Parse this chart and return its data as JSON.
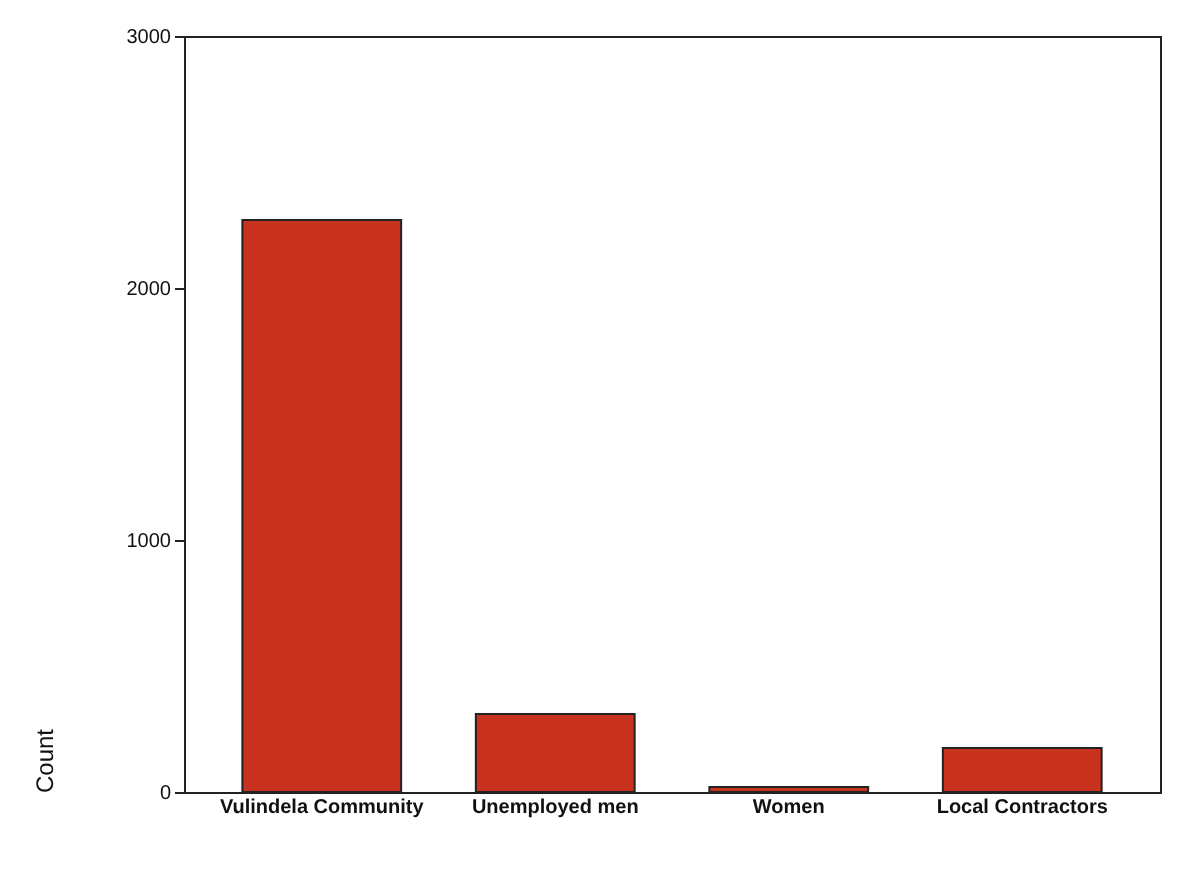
{
  "chart_data": {
    "type": "bar",
    "ylabel": "Count",
    "categories": [
      "Vulindela Community",
      "Unemployed men",
      "Women",
      "Local Contractors"
    ],
    "values": [
      2270,
      310,
      20,
      175
    ],
    "color": "#c8321e",
    "ylim": [
      0,
      3000
    ],
    "yticks": [
      0,
      1000,
      2000,
      3000
    ],
    "grid": false
  }
}
